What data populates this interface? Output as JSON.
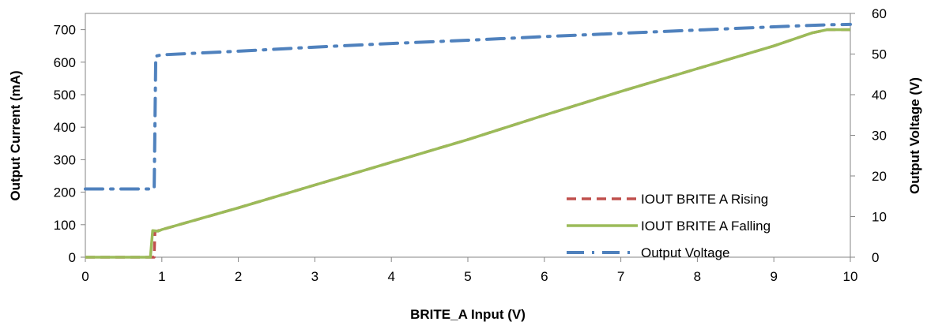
{
  "chart_data": {
    "type": "line",
    "xlabel": "BRITE_A Input (V)",
    "ylabel": "Output Current (mA)",
    "y2label": "Output Voltage (V)",
    "xlim": [
      0,
      10
    ],
    "ylim": [
      0,
      750
    ],
    "y2lim": [
      0,
      60
    ],
    "x_ticks": [
      "0",
      "1",
      "2",
      "3",
      "4",
      "5",
      "6",
      "7",
      "8",
      "9",
      "10"
    ],
    "y_ticks": [
      "0",
      "100",
      "200",
      "300",
      "400",
      "500",
      "600",
      "700"
    ],
    "y2_ticks": [
      "0",
      "10",
      "20",
      "30",
      "40",
      "50",
      "60"
    ],
    "grid": false,
    "legend_position": "right-center",
    "series": [
      {
        "name": "IOUT BRITE A  Rising",
        "axis": "left",
        "color": "#C0504D",
        "style": "dashed",
        "x": [
          0,
          0.85,
          0.9,
          0.91,
          0.93,
          1.0,
          2.0,
          3.0,
          4.0,
          5.0,
          6.0,
          7.0,
          8.0,
          9.0,
          9.5,
          9.7,
          10.0
        ],
        "y": [
          0,
          0,
          0,
          80,
          80,
          85,
          152,
          222,
          292,
          362,
          437,
          510,
          580,
          650,
          690,
          700,
          700
        ]
      },
      {
        "name": "IOUT BRITE A Falling",
        "axis": "left",
        "color": "#9BBB59",
        "style": "solid",
        "x": [
          0,
          0.82,
          0.85,
          0.88,
          0.95,
          1.0,
          2.0,
          3.0,
          4.0,
          5.0,
          6.0,
          7.0,
          8.0,
          9.0,
          9.5,
          9.7,
          10.0
        ],
        "y": [
          0,
          0,
          0,
          82,
          80,
          85,
          152,
          222,
          292,
          362,
          437,
          510,
          580,
          650,
          690,
          700,
          700
        ]
      },
      {
        "name": "Output Voltage",
        "axis": "right",
        "color": "#4F81BD",
        "style": "dashdot",
        "x": [
          0,
          0.9,
          0.92,
          1.0,
          2.0,
          3.0,
          4.0,
          5.0,
          6.0,
          7.0,
          8.0,
          9.0,
          9.7,
          10.0
        ],
        "y": [
          16.8,
          16.8,
          49.5,
          49.8,
          50.7,
          51.7,
          52.6,
          53.4,
          54.3,
          55.1,
          55.9,
          56.7,
          57.2,
          57.3
        ]
      }
    ]
  }
}
